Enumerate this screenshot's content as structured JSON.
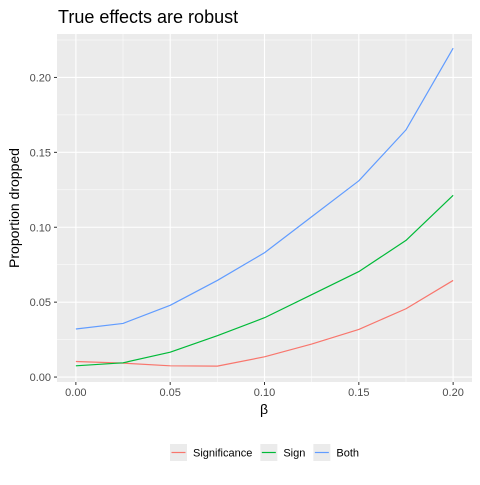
{
  "chart_data": {
    "type": "line",
    "title": "True effects are robust",
    "xlabel": "β",
    "ylabel": "Proportion dropped",
    "xlim": [
      -0.01,
      0.21
    ],
    "ylim": [
      -0.0033,
      0.229
    ],
    "x_ticks": [
      0.0,
      0.05,
      0.1,
      0.15,
      0.2
    ],
    "x_tick_labels": [
      "0.00",
      "0.05",
      "0.10",
      "0.15",
      "0.20"
    ],
    "y_ticks": [
      0.0,
      0.05,
      0.1,
      0.15,
      0.2
    ],
    "y_tick_labels": [
      "0.00",
      "0.05",
      "0.10",
      "0.15",
      "0.20"
    ],
    "x": [
      0.0,
      0.025,
      0.05,
      0.075,
      0.1,
      0.125,
      0.15,
      0.175,
      0.2
    ],
    "series": [
      {
        "name": "Significance",
        "color": "#F8766D",
        "values": [
          0.0104,
          0.0093,
          0.0075,
          0.0073,
          0.0135,
          0.022,
          0.0318,
          0.0456,
          0.0645
        ]
      },
      {
        "name": "Sign",
        "color": "#00BA38",
        "values": [
          0.0075,
          0.0095,
          0.0166,
          0.0276,
          0.0396,
          0.055,
          0.0704,
          0.0912,
          0.1213
        ]
      },
      {
        "name": "Both",
        "color": "#619CFF",
        "values": [
          0.0321,
          0.0358,
          0.0479,
          0.0645,
          0.083,
          0.107,
          0.131,
          0.165,
          0.2195
        ]
      }
    ],
    "grid": true,
    "legend_position": "bottom"
  }
}
